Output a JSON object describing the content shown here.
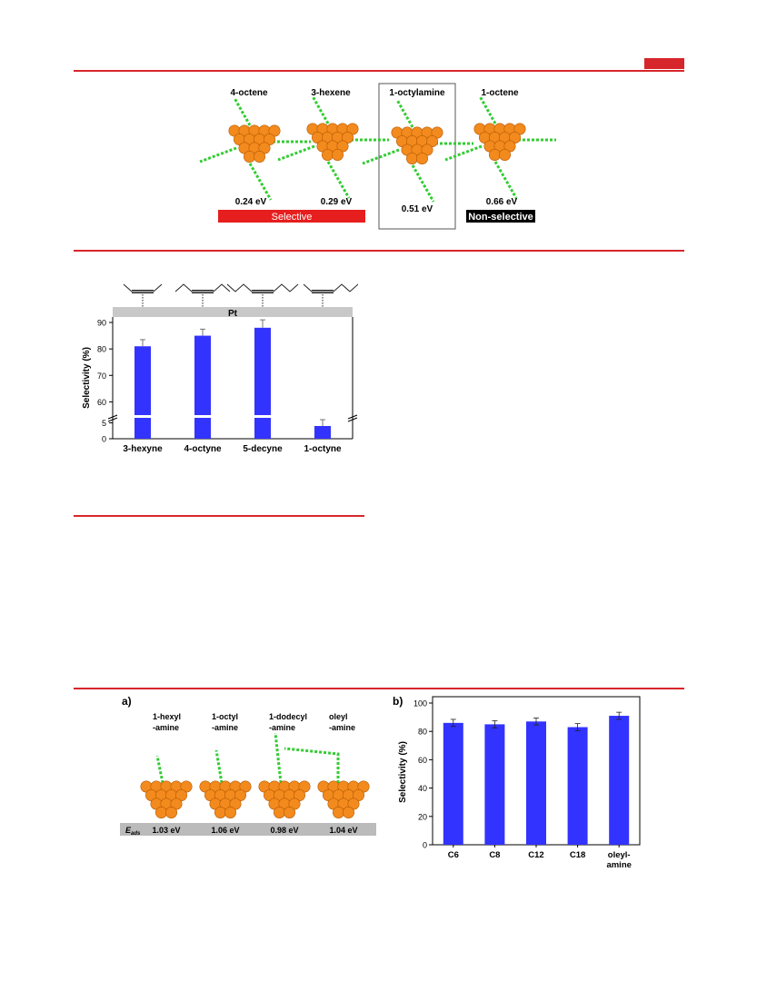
{
  "colors": {
    "rule": "#d7262b",
    "bar": "#3333ff",
    "nanoparticle": "#f28a1e",
    "ligand": "#33cc33",
    "selective_band": "#e61e1e",
    "nonselective_band": "#000000",
    "pt_band": "#c8c8c8",
    "eads_band": "#bbbbbb"
  },
  "figure1": {
    "molecules": [
      {
        "name": "4-octene",
        "energy": "0.24 eV"
      },
      {
        "name": "3-hexene",
        "energy": "0.29 eV"
      },
      {
        "name": "1-octylamine",
        "energy": "0.51 eV"
      },
      {
        "name": "1-octene",
        "energy": "0.66 eV"
      }
    ],
    "selective_label": "Selective",
    "nonselective_label": "Non-selective"
  },
  "figure2": {
    "pt_label": "Pt",
    "chart_data": {
      "type": "bar",
      "categories": [
        "3-hexyne",
        "4-octyne",
        "5-decyne",
        "1-octyne"
      ],
      "values": [
        81,
        85,
        88,
        4
      ],
      "errors": [
        2.5,
        2.5,
        3,
        2
      ],
      "ylabel": "Selectivity (%)",
      "yticks_upper": [
        "90",
        "80",
        "70",
        "60"
      ],
      "yticks_lower": [
        "5",
        "0"
      ],
      "ylim_upper": [
        55,
        90
      ],
      "ylim_lower": [
        0,
        6
      ],
      "axis_break": true
    }
  },
  "figure3": {
    "panel_a": {
      "label": "a)",
      "ligands": [
        {
          "line1": "1-hexyl",
          "line2": "-amine",
          "energy": "1.03 eV"
        },
        {
          "line1": "1-octyl",
          "line2": "-amine",
          "energy": "1.06 eV"
        },
        {
          "line1": "1-dodecyl",
          "line2": "-amine",
          "energy": "0.98 eV"
        },
        {
          "line1": "oleyl",
          "line2": "-amine",
          "energy": "1.04 eV"
        }
      ],
      "eads_symbol": "E",
      "eads_sub": "ads"
    },
    "panel_b": {
      "label": "b)",
      "chart_data": {
        "type": "bar",
        "categories": [
          "C6",
          "C8",
          "C12",
          "C18",
          "oleyl-\namine"
        ],
        "category_lines": [
          [
            "C6"
          ],
          [
            "C8"
          ],
          [
            "C12"
          ],
          [
            "C18"
          ],
          [
            "oleyl-",
            "amine"
          ]
        ],
        "values": [
          86,
          85,
          87,
          83,
          91
        ],
        "errors": [
          2.5,
          2.5,
          2.5,
          2.5,
          2.5
        ],
        "ylabel": "Selectivity (%)",
        "yticks": [
          0,
          20,
          40,
          60,
          80,
          100
        ],
        "ylim": [
          0,
          100
        ]
      }
    }
  }
}
